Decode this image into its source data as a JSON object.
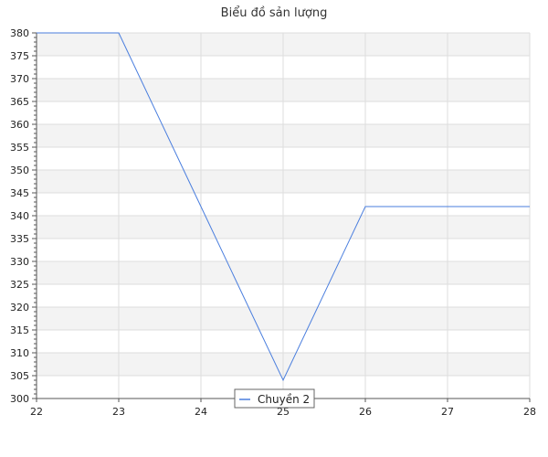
{
  "chart_data": {
    "type": "line",
    "title": "Biểu đồ sản lượng",
    "xlabel": "",
    "ylabel": "",
    "xlim": [
      22,
      28
    ],
    "ylim": [
      300,
      380
    ],
    "x_ticks": [
      "22",
      "23",
      "24",
      "25",
      "26",
      "27",
      "28"
    ],
    "y_ticks": [
      "300",
      "305",
      "310",
      "315",
      "320",
      "325",
      "330",
      "335",
      "340",
      "345",
      "350",
      "355",
      "360",
      "365",
      "370",
      "375",
      "380"
    ],
    "grid": true,
    "legend_position": "bottom-center",
    "series": [
      {
        "name": "Chuyền 2",
        "color": "#4a7ede",
        "points": [
          {
            "x": 22,
            "y": 380
          },
          {
            "x": 23,
            "y": 380
          },
          {
            "x": 24,
            "y": 342
          },
          {
            "x": 25,
            "y": 304
          },
          {
            "x": 26,
            "y": 342
          },
          {
            "x": 27,
            "y": 342
          },
          {
            "x": 28,
            "y": 342
          }
        ]
      }
    ]
  }
}
